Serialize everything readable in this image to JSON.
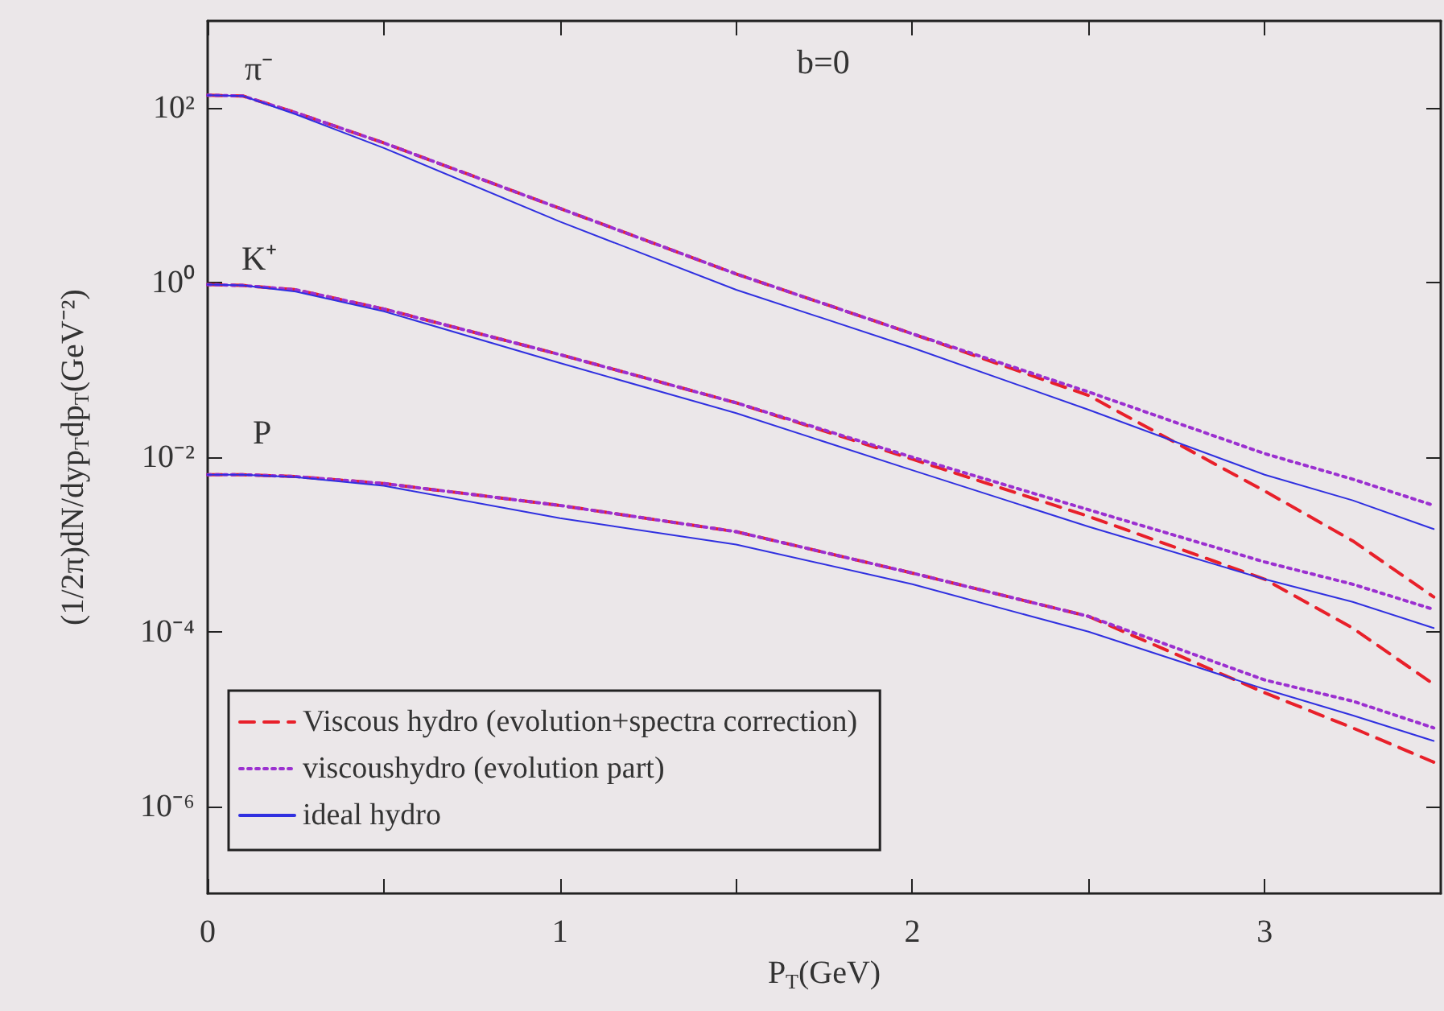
{
  "chart_data": {
    "type": "line",
    "xlabel": "P$_{T}$(GeV)",
    "ylabel": "(1/2π)dN/dyp$_{T}$dp$_{T}$(GeV⁻²)",
    "x": [
      0,
      0.1,
      0.25,
      0.5,
      1,
      1.5,
      2,
      2.5,
      3,
      3.25,
      3.48
    ],
    "series": [
      {
        "name": "Viscous hydro (evolution+spectra correction)",
        "color": "#e8202a",
        "line_style": "dashed",
        "values": [
          141,
          138,
          89,
          40,
          7.1,
          1.26,
          0.26,
          0.051,
          0.0041,
          0.0011,
          0.00025
        ]
      },
      {
        "name": "viscoushydro (evolution part)",
        "color": "#9b30d0",
        "line_style": "dotted",
        "values": [
          141,
          138,
          89,
          40,
          7.1,
          1.26,
          0.26,
          0.056,
          0.011,
          0.0056,
          0.0028
        ]
      },
      {
        "name": "ideal hydro",
        "color": "#3030e0",
        "line_style": "solid",
        "values": [
          141,
          138,
          85,
          35,
          5.0,
          0.83,
          0.18,
          0.035,
          0.0063,
          0.0032,
          0.0015
        ]
      },
      {
        "color": "#e8202a",
        "line_style": "dashed",
        "values": [
          0.95,
          0.93,
          0.83,
          0.5,
          0.15,
          0.042,
          0.0095,
          0.0021,
          0.0004,
          0.00011,
          2.5e-05
        ]
      },
      {
        "color": "#9b30d0",
        "line_style": "dotted",
        "values": [
          0.95,
          0.93,
          0.83,
          0.5,
          0.15,
          0.042,
          0.01,
          0.0025,
          0.00063,
          0.00035,
          0.00018
        ]
      },
      {
        "color": "#3030e0",
        "line_style": "solid",
        "values": [
          0.95,
          0.93,
          0.79,
          0.47,
          0.12,
          0.032,
          0.0071,
          0.0016,
          0.0004,
          0.00022,
          0.00011
        ]
      },
      {
        "color": "#e8202a",
        "line_style": "dashed",
        "values": [
          0.0063,
          0.0063,
          0.006,
          0.005,
          0.0028,
          0.0014,
          0.00047,
          0.00015,
          2e-05,
          7.9e-06,
          3.2e-06
        ]
      },
      {
        "color": "#9b30d0",
        "line_style": "dotted",
        "values": [
          0.0063,
          0.0063,
          0.006,
          0.005,
          0.0028,
          0.0014,
          0.00047,
          0.00015,
          2.8e-05,
          1.6e-05,
          7.9e-06
        ]
      },
      {
        "color": "#3030e0",
        "line_style": "solid",
        "values": [
          0.0063,
          0.0063,
          0.0059,
          0.0047,
          0.002,
          0.001,
          0.00035,
          0.0001,
          2.2e-05,
          1.1e-05,
          5.6e-06
        ]
      }
    ],
    "log": "y",
    "xlim": [
      0,
      3.5
    ],
    "ylim": [
      1e-07,
      1000
    ],
    "xticks": [
      0,
      {
        "value": 0.5,
        "label": null
      },
      1,
      {
        "value": 1.5,
        "label": null
      },
      2,
      {
        "value": 2.5,
        "label": null
      },
      3
    ],
    "yticks": [
      {
        "value": 1e-06,
        "label": "10⁻⁶"
      },
      {
        "value": 0.0001,
        "label": "10⁻⁴"
      },
      {
        "value": 0.01,
        "label": "10⁻²"
      },
      {
        "value": 1,
        "label": "10⁰"
      },
      {
        "value": 100,
        "label": "10²"
      }
    ],
    "grid": false,
    "legend": "bottom left",
    "annotations": [
      "b=0",
      "π⁻",
      "K⁺",
      "P"
    ]
  }
}
